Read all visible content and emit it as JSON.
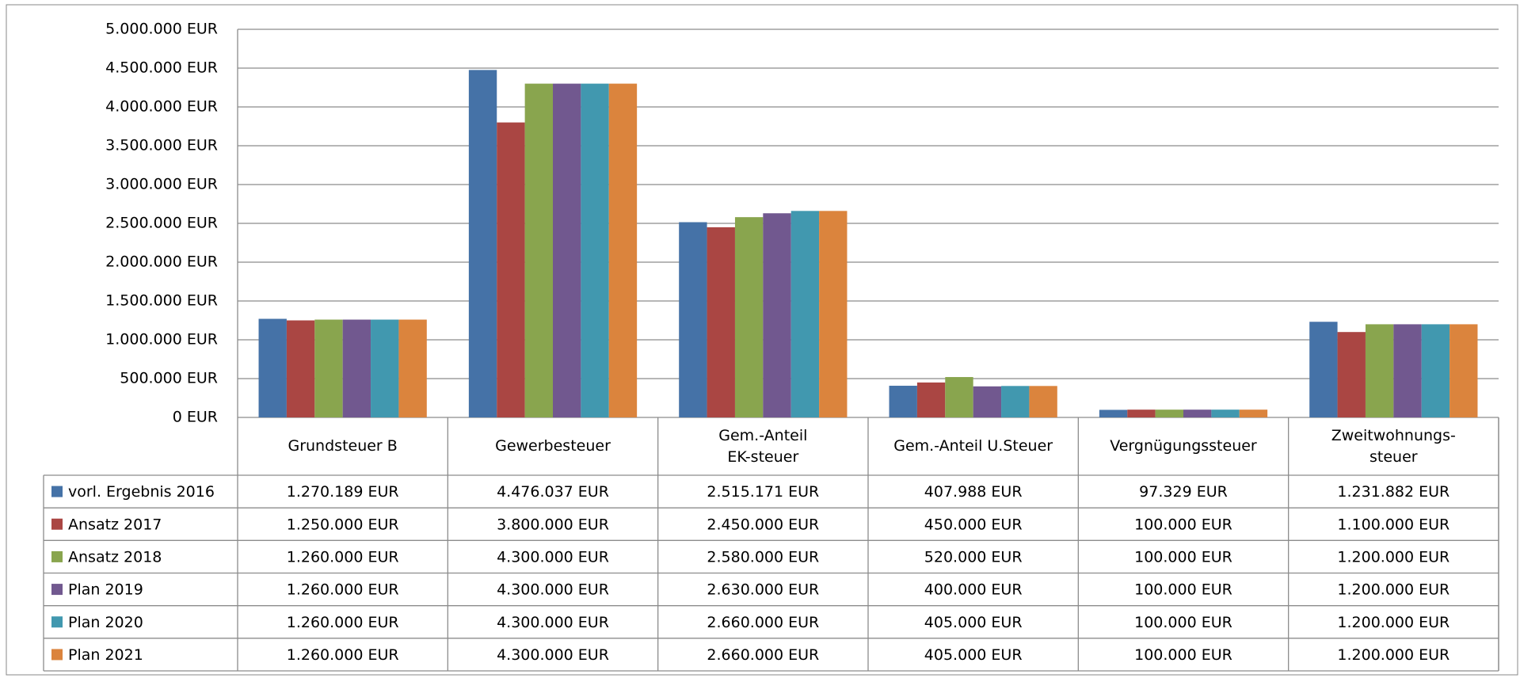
{
  "chart_data": {
    "type": "bar",
    "categories": [
      "Grundsteuer B",
      "Gewerbesteuer",
      "Gem.-Anteil\nEK-steuer",
      "Gem.-Anteil U.Steuer",
      "Vergnügungssteuer",
      "Zweitwohnungs-\nsteuer"
    ],
    "series": [
      {
        "name": "vorl. Ergebnis 2016",
        "color": "#4572a7",
        "values": [
          1270189,
          4476037,
          2515171,
          407988,
          97329,
          1231882
        ],
        "value_labels": [
          "1.270.189 EUR",
          "4.476.037 EUR",
          "2.515.171 EUR",
          "407.988 EUR",
          "97.329 EUR",
          "1.231.882 EUR"
        ]
      },
      {
        "name": "Ansatz 2017",
        "color": "#aa4643",
        "values": [
          1250000,
          3800000,
          2450000,
          450000,
          100000,
          1100000
        ],
        "value_labels": [
          "1.250.000 EUR",
          "3.800.000 EUR",
          "2.450.000 EUR",
          "450.000 EUR",
          "100.000 EUR",
          "1.100.000 EUR"
        ]
      },
      {
        "name": "Ansatz 2018",
        "color": "#89a54e",
        "values": [
          1260000,
          4300000,
          2580000,
          520000,
          100000,
          1200000
        ],
        "value_labels": [
          "1.260.000 EUR",
          "4.300.000 EUR",
          "2.580.000 EUR",
          "520.000 EUR",
          "100.000 EUR",
          "1.200.000 EUR"
        ]
      },
      {
        "name": "Plan 2019",
        "color": "#71588f",
        "values": [
          1260000,
          4300000,
          2630000,
          400000,
          100000,
          1200000
        ],
        "value_labels": [
          "1.260.000 EUR",
          "4.300.000 EUR",
          "2.630.000 EUR",
          "400.000 EUR",
          "100.000 EUR",
          "1.200.000 EUR"
        ]
      },
      {
        "name": "Plan 2020",
        "color": "#4198af",
        "values": [
          1260000,
          4300000,
          2660000,
          405000,
          100000,
          1200000
        ],
        "value_labels": [
          "1.260.000 EUR",
          "4.300.000 EUR",
          "2.660.000 EUR",
          "405.000 EUR",
          "100.000 EUR",
          "1.200.000 EUR"
        ]
      },
      {
        "name": "Plan 2021",
        "color": "#db843d",
        "values": [
          1260000,
          4300000,
          2660000,
          405000,
          100000,
          1200000
        ],
        "value_labels": [
          "1.260.000 EUR",
          "4.300.000 EUR",
          "2.660.000 EUR",
          "405.000 EUR",
          "100.000 EUR",
          "1.200.000 EUR"
        ]
      }
    ],
    "ylim": [
      0,
      5000000
    ],
    "yticks": [
      {
        "value": 0,
        "label": "0 EUR"
      },
      {
        "value": 500000,
        "label": "500.000 EUR"
      },
      {
        "value": 1000000,
        "label": "1.000.000 EUR"
      },
      {
        "value": 1500000,
        "label": "1.500.000 EUR"
      },
      {
        "value": 2000000,
        "label": "2.000.000 EUR"
      },
      {
        "value": 2500000,
        "label": "2.500.000 EUR"
      },
      {
        "value": 3000000,
        "label": "3.000.000 EUR"
      },
      {
        "value": 3500000,
        "label": "3.500.000 EUR"
      },
      {
        "value": 4000000,
        "label": "4.000.000 EUR"
      },
      {
        "value": 4500000,
        "label": "4.500.000 EUR"
      },
      {
        "value": 5000000,
        "label": "5.000.000 EUR"
      }
    ],
    "grid": true
  }
}
